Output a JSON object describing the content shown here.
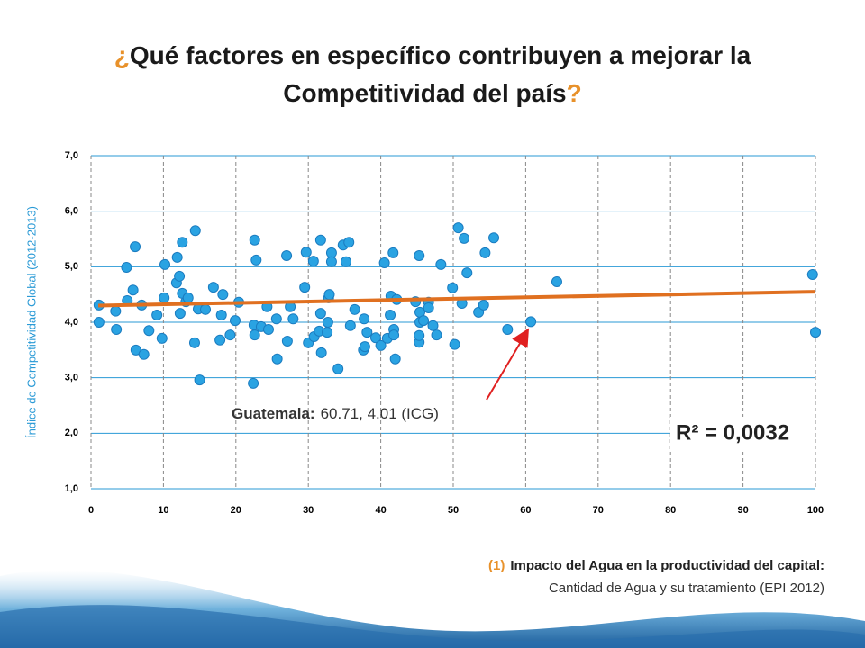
{
  "chart_data": {
    "type": "scatter",
    "title_parts": [
      "¿",
      "Qué factores en específico contribuyen a mejorar la",
      "Competitividad del país",
      "?"
    ],
    "y_label": "Índice de Competitividad Global (2012-2013)",
    "xlim": [
      0,
      100
    ],
    "xticks": [
      0,
      10,
      20,
      30,
      40,
      50,
      60,
      70,
      80,
      90,
      100
    ],
    "ylim": [
      1,
      7
    ],
    "yticks": [
      {
        "value": 1,
        "label": "1,0"
      },
      {
        "value": 2,
        "label": "2,0"
      },
      {
        "value": 3,
        "label": "3,0"
      },
      {
        "value": 4,
        "label": "4,0"
      },
      {
        "value": 5,
        "label": "5,0"
      },
      {
        "value": 6,
        "label": "6,0"
      },
      {
        "value": 7,
        "label": "7,0"
      }
    ],
    "color": "#2aa3e2",
    "x": [
      1.1,
      1.1,
      3.4,
      3.5,
      4.9,
      5.0,
      5.8,
      6.1,
      6.2,
      7.0,
      7.3,
      8.0,
      9.1,
      9.8,
      10.2,
      10.1,
      11.8,
      11.9,
      12.2,
      12.6,
      12.3,
      12.6,
      13.1,
      13.4,
      14.4,
      14.3,
      14.8,
      15.0,
      15.8,
      16.9,
      18.2,
      18.0,
      17.8,
      19.2,
      19.9,
      20.4,
      22.6,
      22.8,
      22.4,
      22.5,
      22.6,
      23.5,
      24.3,
      24.5,
      25.6,
      25.7,
      27.0,
      27.1,
      27.5,
      27.9,
      29.5,
      29.7,
      30.0,
      30.7,
      30.8,
      31.5,
      31.7,
      31.7,
      31.8,
      32.6,
      32.7,
      32.8,
      32.9,
      33.2,
      33.2,
      34.1,
      34.8,
      35.2,
      35.6,
      35.8,
      36.4,
      37.6,
      37.7,
      37.8,
      38.1,
      39.3,
      40.0,
      40.5,
      40.9,
      41.3,
      41.4,
      41.7,
      41.8,
      41.8,
      42.2,
      42.0,
      44.8,
      45.3,
      45.3,
      45.4,
      45.3,
      45.4,
      45.9,
      46.6,
      46.6,
      47.2,
      47.7,
      48.3,
      49.9,
      50.2,
      50.7,
      51.2,
      51.5,
      51.9,
      53.5,
      54.2,
      54.4,
      55.6,
      57.5,
      60.71,
      64.3,
      99.6,
      100
    ],
    "values": [
      4.31,
      4.0,
      4.2,
      3.87,
      4.99,
      4.39,
      4.58,
      5.36,
      3.5,
      4.31,
      3.42,
      3.85,
      4.13,
      3.71,
      5.04,
      4.44,
      4.71,
      5.17,
      4.83,
      5.44,
      4.16,
      4.52,
      4.37,
      4.44,
      5.65,
      3.63,
      4.24,
      2.96,
      4.23,
      4.63,
      4.5,
      4.13,
      3.68,
      3.77,
      4.03,
      4.36,
      5.48,
      5.12,
      2.9,
      3.95,
      3.77,
      3.92,
      4.28,
      3.87,
      4.06,
      3.34,
      5.2,
      3.66,
      4.28,
      4.06,
      4.63,
      5.26,
      3.63,
      5.1,
      3.74,
      3.84,
      5.48,
      4.16,
      3.45,
      3.82,
      4.0,
      4.44,
      4.5,
      5.25,
      5.09,
      3.16,
      5.39,
      5.09,
      5.44,
      3.94,
      4.23,
      3.5,
      4.06,
      3.56,
      3.82,
      3.72,
      3.58,
      5.07,
      3.71,
      4.13,
      4.47,
      5.25,
      3.87,
      3.77,
      4.41,
      3.34,
      4.37,
      5.2,
      3.64,
      4.18,
      3.76,
      4.0,
      4.03,
      4.36,
      4.26,
      3.94,
      3.77,
      5.04,
      4.62,
      3.6,
      5.7,
      4.34,
      5.51,
      4.89,
      4.18,
      4.31,
      5.25,
      5.52,
      3.87,
      4.01,
      4.73,
      4.86,
      3.82
    ],
    "trendline": {
      "x": [
        1,
        100
      ],
      "values": [
        4.3,
        4.55
      ],
      "color": "#e07020"
    },
    "annotation": {
      "label": "Guatemala:",
      "text": "60.71, 4.01 (ICG)"
    },
    "r_squared": "R² = 0,0032",
    "footnote": {
      "number": "(1)",
      "title": "Impacto del Agua en la productividad del capital:",
      "text": "Cantidad de Agua y su tratamiento (EPI 2012)"
    }
  }
}
